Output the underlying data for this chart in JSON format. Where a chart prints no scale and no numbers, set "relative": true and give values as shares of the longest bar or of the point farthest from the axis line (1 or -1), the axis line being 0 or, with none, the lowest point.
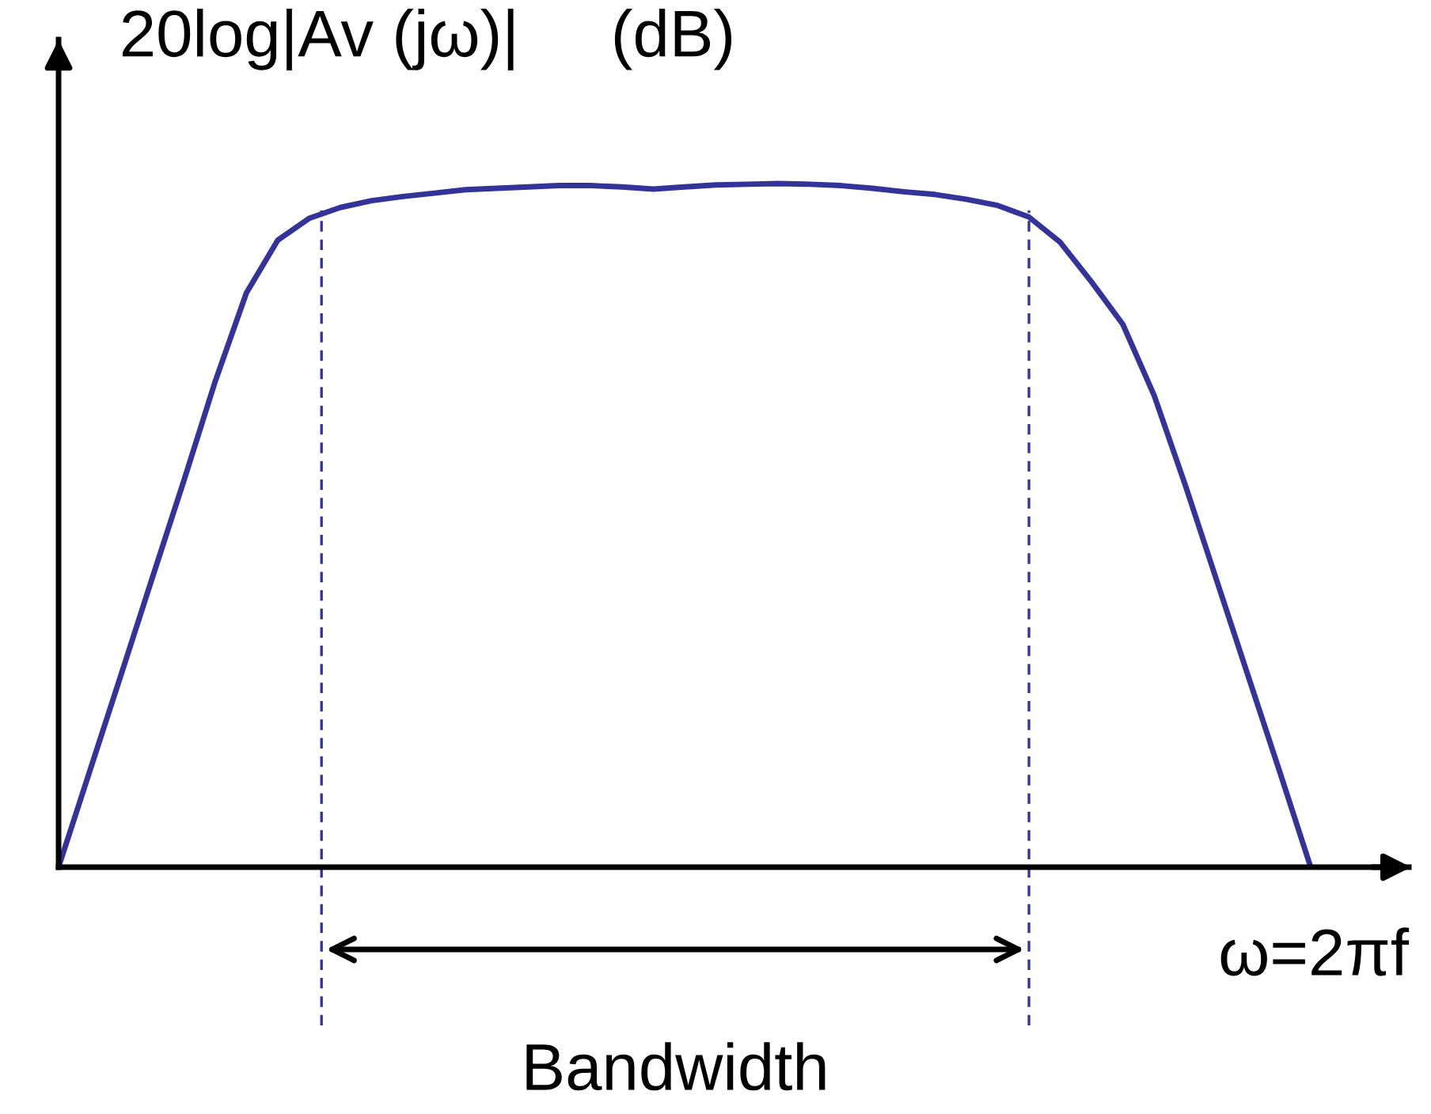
{
  "chart_data": {
    "type": "line",
    "relative": true,
    "ylabel": "20log|Av (jω)|     (dB)",
    "xlabel": "ω=2πf",
    "categories": [
      null,
      null,
      null,
      null,
      null,
      null,
      null,
      null,
      null,
      null,
      null,
      null,
      null,
      null,
      null,
      null,
      null,
      null,
      null,
      null,
      null,
      null,
      null,
      null,
      null,
      null,
      null,
      null,
      null,
      null,
      null,
      null,
      null,
      null,
      null,
      null,
      null,
      null,
      null,
      null,
      null
    ],
    "series": [
      {
        "color": "#333399",
        "values": [
          0,
          0.141,
          0.282,
          0.424,
          0.565,
          0.71,
          0.84,
          0.917,
          0.949,
          0.965,
          0.975,
          0.981,
          0.986,
          0.991,
          0.993,
          0.995,
          0.997,
          0.997,
          0.995,
          0.992,
          0.995,
          0.998,
          0.999,
          1,
          0.999,
          0.997,
          0.993,
          0.988,
          0.984,
          0.977,
          0.968,
          0.951,
          0.914,
          0.856,
          0.794,
          0.69,
          0.558,
          0.419,
          0.28,
          0.141,
          0
        ]
      }
    ],
    "line_style": "solid",
    "annotations": [
      "Bandwidth"
    ]
  }
}
